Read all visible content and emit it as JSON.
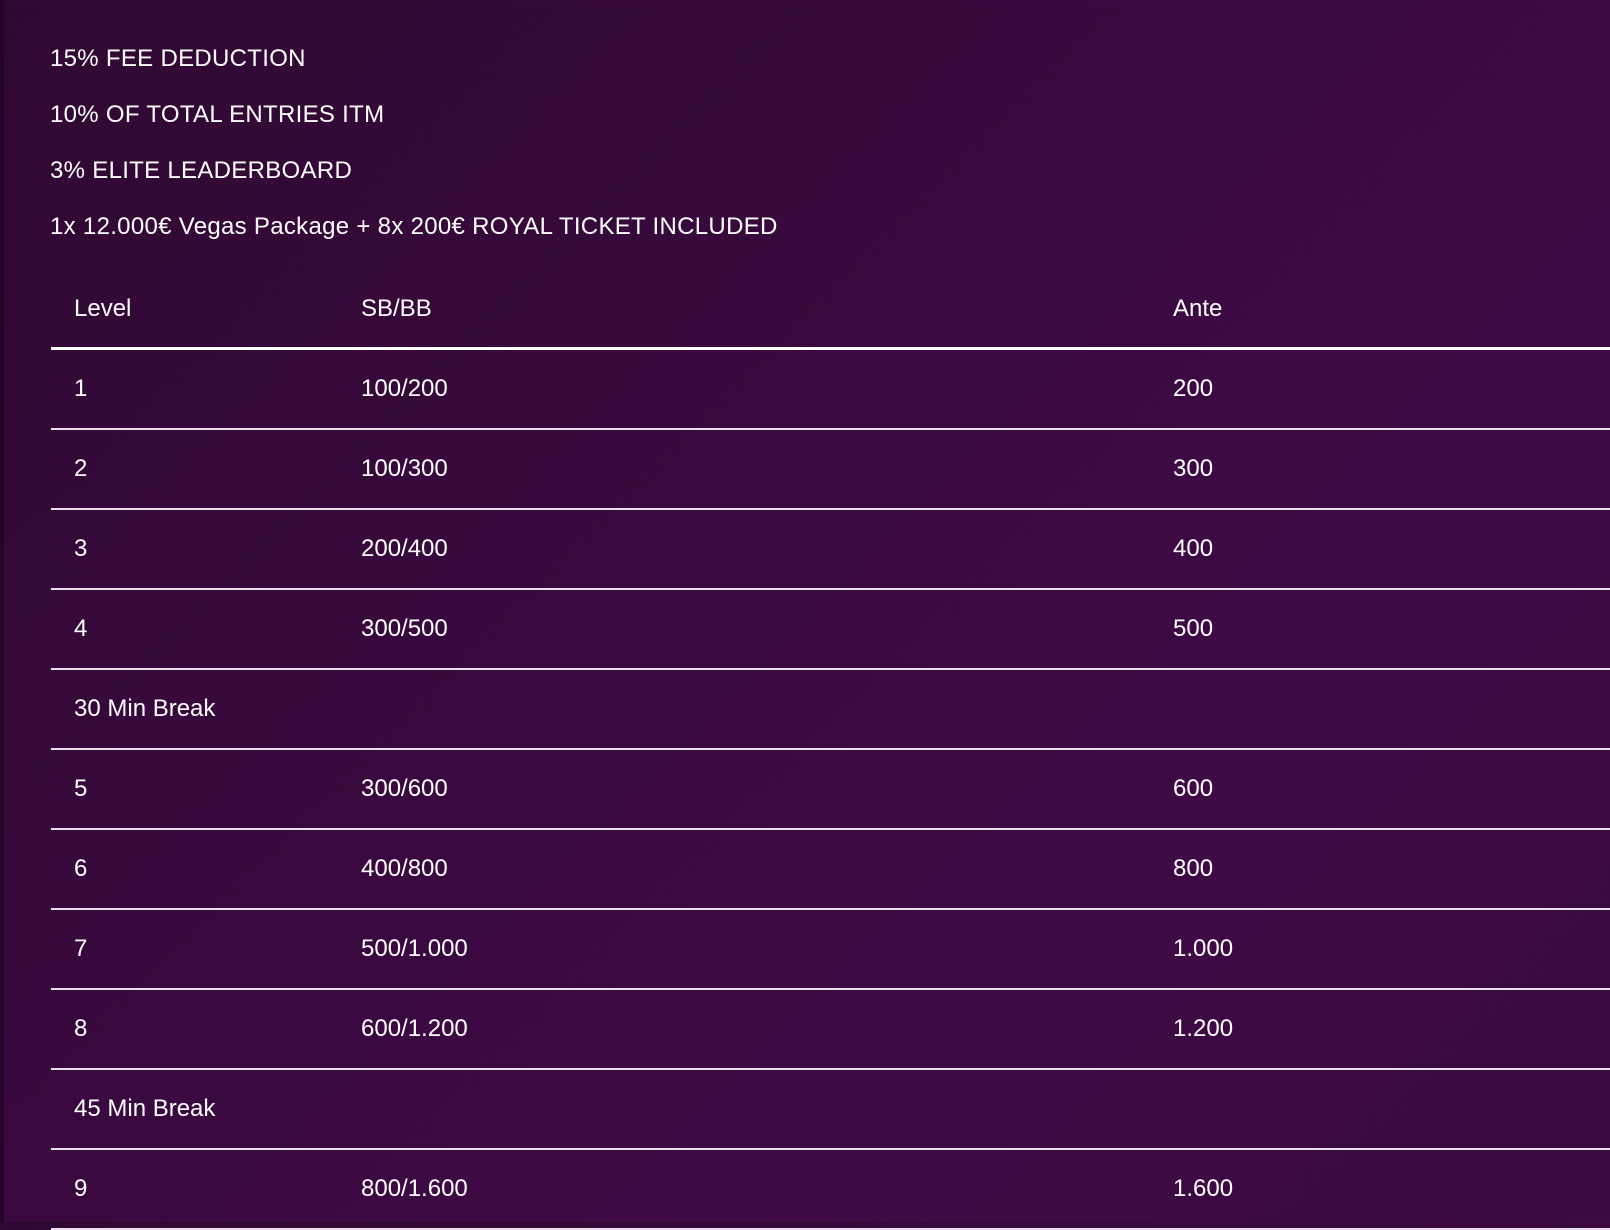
{
  "info": {
    "lines": [
      "15% FEE DEDUCTION",
      "10% OF TOTAL ENTRIES ITM",
      "3% ELITE LEADERBOARD",
      "1x 12.000€ Vegas Package + 8x 200€ ROYAL TICKET INCLUDED"
    ]
  },
  "table": {
    "headers": {
      "level": "Level",
      "blinds": "SB/BB",
      "ante": "Ante"
    },
    "rows": [
      {
        "level": "1",
        "blinds": "100/200",
        "ante": "200"
      },
      {
        "level": "2",
        "blinds": "100/300",
        "ante": "300"
      },
      {
        "level": "3",
        "blinds": "200/400",
        "ante": "400"
      },
      {
        "level": "4",
        "blinds": "300/500",
        "ante": "500"
      },
      {
        "break": "30 Min Break"
      },
      {
        "level": "5",
        "blinds": "300/600",
        "ante": "600"
      },
      {
        "level": "6",
        "blinds": "400/800",
        "ante": "800"
      },
      {
        "level": "7",
        "blinds": "500/1.000",
        "ante": "1.000"
      },
      {
        "level": "8",
        "blinds": "600/1.200",
        "ante": "1.200"
      },
      {
        "break": "45 Min Break"
      },
      {
        "level": "9",
        "blinds": "800/1.600",
        "ante": "1.600"
      }
    ]
  },
  "colors": {
    "background": "#3a0940",
    "text": "#ffffff",
    "divider": "#e9e2ea"
  }
}
